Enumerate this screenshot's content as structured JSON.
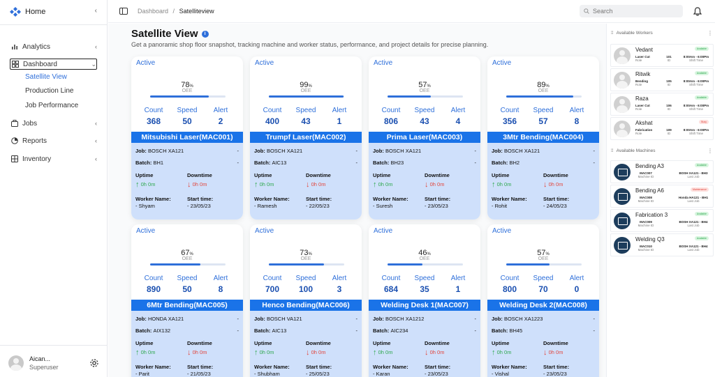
{
  "app": {
    "logo_text": "Home"
  },
  "sidebar": {
    "items": [
      {
        "label": "Analytics"
      },
      {
        "label": "Dashboard"
      },
      {
        "label": "Jobs"
      },
      {
        "label": "Reports"
      },
      {
        "label": "Inventory"
      }
    ],
    "dashboard_sub": [
      "Satellite View",
      "Production Line",
      "Job Performance"
    ],
    "user": {
      "name": "Aican...",
      "role": "Superuser"
    }
  },
  "topbar": {
    "breadcrumb_root": "Dashboard",
    "breadcrumb_sep": "/",
    "breadcrumb_current": "Satelliteview",
    "search_placeholder": "Search"
  },
  "page": {
    "title": "Satellite View",
    "subtitle": "Get a panoramic shop floor snapshot, tracking machine and worker status, performance, and project details for precise planning."
  },
  "labels": {
    "oee": "OEE",
    "oee_unit": "%",
    "count": "Count",
    "speed": "Speed",
    "alert": "Alert",
    "job": "Job:",
    "batch": "Batch:",
    "uptime": "Uptime",
    "downtime": "Downtime",
    "worker_name": "Worker Name:",
    "start_time": "Start time:",
    "dash": "-"
  },
  "machines": [
    {
      "status": "Active",
      "oee": 78,
      "count": 368,
      "speed": 50,
      "alert": 2,
      "name": "Mitsubishi Laser(MAC001)",
      "job": "BOSCH XA121",
      "batch": "BH1",
      "uptime": "0h 0m",
      "downtime": "0h 0m",
      "worker": "- Shyam",
      "start": "- 23/05/23"
    },
    {
      "status": "Active",
      "oee": 99,
      "count": 400,
      "speed": 43,
      "alert": 1,
      "name": "Trumpf Laser(MAC002)",
      "job": "BOSCH XA121",
      "batch": "AIC13",
      "uptime": "0h 0m",
      "downtime": "0h 0m",
      "worker": "- Ramesh",
      "start": "- 22/05/23"
    },
    {
      "status": "Active",
      "oee": 57,
      "count": 806,
      "speed": 43,
      "alert": 4,
      "name": "Prima Laser(MAC003)",
      "job": "BOSCH XA121",
      "batch": "BH23",
      "uptime": "0h 0m",
      "downtime": "0h 0m",
      "worker": "- Suresh",
      "start": "- 23/05/23"
    },
    {
      "status": "Active",
      "oee": 89,
      "count": 356,
      "speed": 57,
      "alert": 8,
      "name": "3Mtr Bending(MAC004)",
      "job": "BOSCH XA121",
      "batch": "BH2",
      "uptime": "0h 0m",
      "downtime": "0h 0m",
      "worker": "- Rohit",
      "start": "- 24/05/23"
    },
    {
      "status": "Active",
      "oee": 67,
      "count": 890,
      "speed": 50,
      "alert": 8,
      "name": "6Mtr Bending(MAC005)",
      "job": "HONDA XA121",
      "batch": "AIX132",
      "uptime": "0h 0m",
      "downtime": "0h 0m",
      "worker": "- Parit",
      "start": "- 21/05/23"
    },
    {
      "status": "Active",
      "oee": 73,
      "count": 700,
      "speed": 100,
      "alert": 3,
      "name": "Henco Bending(MAC006)",
      "job": "BOSCH VA121",
      "batch": "AIC13",
      "uptime": "0h 0m",
      "downtime": "0h 0m",
      "worker": "- Shubham",
      "start": "- 25/05/23"
    },
    {
      "status": "Active",
      "oee": 46,
      "count": 684,
      "speed": 35,
      "alert": 1,
      "name": "Welding Desk 1(MAC007)",
      "job": "BOSCH XA1212",
      "batch": "AIC234",
      "uptime": "0h 0m",
      "downtime": "0h 0m",
      "worker": "- Karan",
      "start": "- 23/05/23"
    },
    {
      "status": "Active",
      "oee": 57,
      "count": 800,
      "speed": 70,
      "alert": 0,
      "name": "Welding Desk 2(MAC008)",
      "job": "BOSCH XA1223",
      "batch": "BH45",
      "uptime": "0h 0m",
      "downtime": "0h 0m",
      "worker": "- Vishal",
      "start": "- 23/05/23"
    }
  ],
  "workers_panel": {
    "title": "Available Workers",
    "role_label": "Role",
    "id_label": "ID",
    "shift_label": "Shift Time",
    "workers": [
      {
        "name": "Vedant",
        "role": "Laser Cut",
        "id": "101",
        "shift": "8:00Am - 6:00Pm",
        "badge": "Available",
        "badge_color": "#2fa84f"
      },
      {
        "name": "Ritwik",
        "role": "Bending",
        "id": "105",
        "shift": "8:00Am - 6:00Pm",
        "badge": "Available",
        "badge_color": "#2fa84f"
      },
      {
        "name": "Raza",
        "role": "Laser Cut",
        "id": "106",
        "shift": "8:00Am - 6:00Pm",
        "badge": "Available",
        "badge_color": "#2fa84f"
      },
      {
        "name": "Akshat",
        "role": "Fabrication",
        "id": "109",
        "shift": "8:00Am - 6:00Pm",
        "badge": "Busy",
        "badge_color": "#e2453c"
      }
    ]
  },
  "machines_panel": {
    "title": "Available Machines",
    "id_label": "Machine ID",
    "job_label": "Last Job",
    "machines": [
      {
        "name": "Bending A3",
        "id": "MAC007",
        "job": "BOSH XA121 - BH3",
        "badge": "Available",
        "badge_color": "#2fa84f"
      },
      {
        "name": "Bending A6",
        "id": "MAC008",
        "job": "Honda HA121 - BH1",
        "badge": "Maintenance",
        "badge_color": "#e2453c"
      },
      {
        "name": "Fabrication 3",
        "id": "MAC009",
        "job": "BOSH XA121 - BH4",
        "badge": "Available",
        "badge_color": "#2fa84f"
      },
      {
        "name": "Welding Q3",
        "id": "MAC010",
        "job": "BOSH XA121 - BH4",
        "badge": "Available",
        "badge_color": "#2fa84f"
      }
    ]
  }
}
